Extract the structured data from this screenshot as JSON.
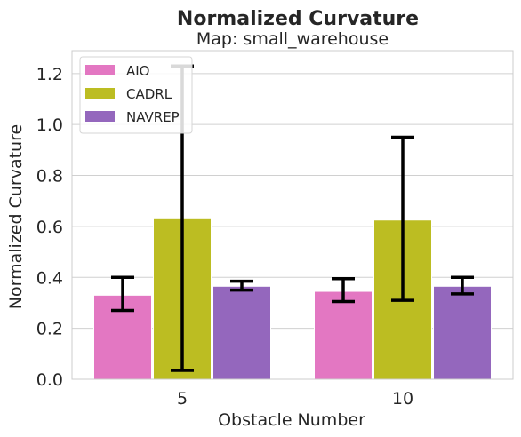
{
  "chart_data": {
    "type": "bar",
    "title": "Normalized Curvature",
    "subtitle": "Map: small_warehouse",
    "xlabel": "Obstacle Number",
    "ylabel": "Normalized Curvature",
    "categories": [
      "5",
      "10"
    ],
    "ylim": [
      0,
      1.29
    ],
    "yticks": [
      "0.0",
      "0.2",
      "0.4",
      "0.6",
      "0.8",
      "1.0",
      "1.2"
    ],
    "grid": true,
    "legend_position": "top-left",
    "series": [
      {
        "name": "AIO",
        "color": "#e377c2",
        "values": [
          0.33,
          0.345
        ],
        "err_low": [
          0.27,
          0.305
        ],
        "err_high": [
          0.4,
          0.395
        ]
      },
      {
        "name": "CADRL",
        "color": "#bcbd22",
        "values": [
          0.63,
          0.625
        ],
        "err_low": [
          0.035,
          0.31
        ],
        "err_high": [
          1.23,
          0.95
        ]
      },
      {
        "name": "NAVREP",
        "color": "#9467bd",
        "values": [
          0.365,
          0.365
        ],
        "err_low": [
          0.35,
          0.335
        ],
        "err_high": [
          0.385,
          0.4
        ]
      }
    ]
  }
}
